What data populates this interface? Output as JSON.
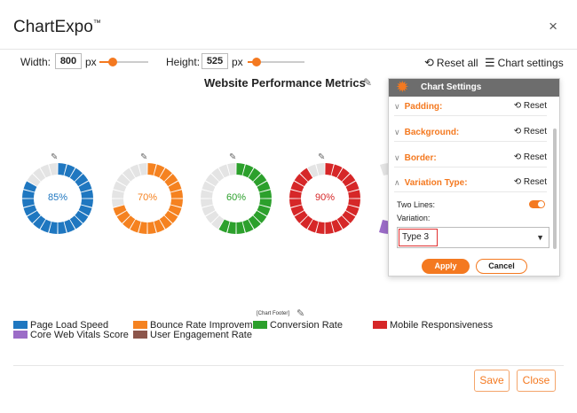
{
  "app": {
    "title": "ChartExpo",
    "trademark": "™",
    "close_icon": "×"
  },
  "toolbar": {
    "width_label": "Width:",
    "width_value": "800",
    "width_unit": "px",
    "height_label": "Height:",
    "height_value": "525",
    "height_unit": "px",
    "reset_all": "Reset all",
    "chart_settings": "Chart settings",
    "accent": "#f47920"
  },
  "chart": {
    "title": "Website Performance Metrics",
    "footer_label": "[Chart Footer]"
  },
  "chart_data": {
    "type": "donut",
    "title": "Website Performance Metrics",
    "variation": "Type 3",
    "gauges": [
      {
        "value": 85,
        "label": "85%",
        "color": "#1f77c0"
      },
      {
        "value": 70,
        "label": "70%",
        "color": "#f58220"
      },
      {
        "value": 60,
        "label": "60%",
        "color": "#2ca02c"
      },
      {
        "value": 90,
        "label": "90%",
        "color": "#d62728"
      }
    ],
    "track_color": "#e4e4e4",
    "legend": [
      {
        "name": "Page Load Speed",
        "color": "#1f77c0"
      },
      {
        "name": "Core Web Vitals Score",
        "color": "#9b6cc7"
      },
      {
        "name": "Bounce Rate Improvement",
        "color": "#f58220"
      },
      {
        "name": "User Engagement Rate",
        "color": "#8c564b"
      },
      {
        "name": "Conversion Rate",
        "color": "#2ca02c"
      },
      {
        "name": "Mobile Responsiveness",
        "color": "#d62728"
      }
    ]
  },
  "settings_panel": {
    "title": "Chart Settings",
    "reset_label": "Reset",
    "sections": [
      {
        "name": "Padding:",
        "chevron": "∨"
      },
      {
        "name": "Background:",
        "chevron": "∨"
      },
      {
        "name": "Border:",
        "chevron": "∨"
      },
      {
        "name": "Variation Type:",
        "chevron": "∧"
      }
    ],
    "two_lines_label": "Two Lines:",
    "two_lines_on": true,
    "variation_label": "Variation:",
    "variation_value": "Type 3",
    "apply": "Apply",
    "cancel": "Cancel"
  },
  "footer_buttons": {
    "save": "Save",
    "close": "Close"
  }
}
